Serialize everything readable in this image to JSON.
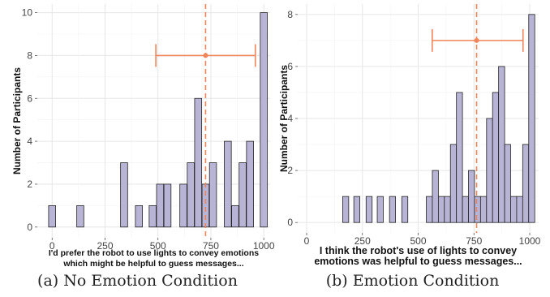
{
  "chart_data": [
    {
      "type": "histogram",
      "panel": "a",
      "xlabel_lines": [
        "I'd prefer the robot to use lights to convey emotions",
        "which might be helpful to guess messages..."
      ],
      "ylabel": "Number of Participants",
      "x_ticks": [
        "0",
        "250",
        "500",
        "750",
        "1000"
      ],
      "y_ticks": [
        "0",
        "2",
        "4",
        "6",
        "8",
        "10"
      ],
      "xlim": [
        -70,
        1030
      ],
      "ylim": [
        -0.5,
        10.4
      ],
      "bin_width": 33.3,
      "bins": [
        {
          "x": 0,
          "count": 1
        },
        {
          "x": 133,
          "count": 1
        },
        {
          "x": 340,
          "count": 3
        },
        {
          "x": 410,
          "count": 1
        },
        {
          "x": 475,
          "count": 1
        },
        {
          "x": 510,
          "count": 2
        },
        {
          "x": 545,
          "count": 2
        },
        {
          "x": 620,
          "count": 2
        },
        {
          "x": 655,
          "count": 3
        },
        {
          "x": 690,
          "count": 6
        },
        {
          "x": 725,
          "count": 2
        },
        {
          "x": 760,
          "count": 3
        },
        {
          "x": 830,
          "count": 4
        },
        {
          "x": 865,
          "count": 1
        },
        {
          "x": 900,
          "count": 3
        },
        {
          "x": 935,
          "count": 4
        },
        {
          "x": 1000,
          "count": 10
        }
      ],
      "mean": 725,
      "ci": [
        490,
        960
      ],
      "ci_y": 8,
      "bar_color": "#b8b4d6",
      "accent_color": "#f0845a",
      "caption": "(a) No Emotion Condition"
    },
    {
      "type": "histogram",
      "panel": "b",
      "xlabel_lines": [
        "I think the robot's use of lights to convey",
        "emotions was helpful to guess messages..."
      ],
      "ylabel": "Number of Participants",
      "x_ticks": [
        "0",
        "250",
        "500",
        "750",
        "1000"
      ],
      "y_ticks": [
        "0",
        "2",
        "4",
        "6",
        "8"
      ],
      "xlim": [
        -40,
        1040
      ],
      "ylim": [
        -0.4,
        8.4
      ],
      "bin_width": 27,
      "bins": [
        {
          "x": 175,
          "count": 1
        },
        {
          "x": 225,
          "count": 1
        },
        {
          "x": 280,
          "count": 1
        },
        {
          "x": 330,
          "count": 1
        },
        {
          "x": 385,
          "count": 1
        },
        {
          "x": 440,
          "count": 1
        },
        {
          "x": 550,
          "count": 1
        },
        {
          "x": 577,
          "count": 2
        },
        {
          "x": 604,
          "count": 1
        },
        {
          "x": 631,
          "count": 1
        },
        {
          "x": 658,
          "count": 3
        },
        {
          "x": 685,
          "count": 5
        },
        {
          "x": 712,
          "count": 1
        },
        {
          "x": 739,
          "count": 2
        },
        {
          "x": 766,
          "count": 1
        },
        {
          "x": 793,
          "count": 1
        },
        {
          "x": 820,
          "count": 4
        },
        {
          "x": 847,
          "count": 5
        },
        {
          "x": 874,
          "count": 6
        },
        {
          "x": 901,
          "count": 3
        },
        {
          "x": 928,
          "count": 1
        },
        {
          "x": 955,
          "count": 1
        },
        {
          "x": 982,
          "count": 3
        },
        {
          "x": 1009,
          "count": 8
        }
      ],
      "mean": 762,
      "ci": [
        563,
        970
      ],
      "ci_y": 7,
      "bar_color": "#b8b4d6",
      "accent_color": "#f0845a",
      "caption": "(b) Emotion Condition"
    }
  ]
}
